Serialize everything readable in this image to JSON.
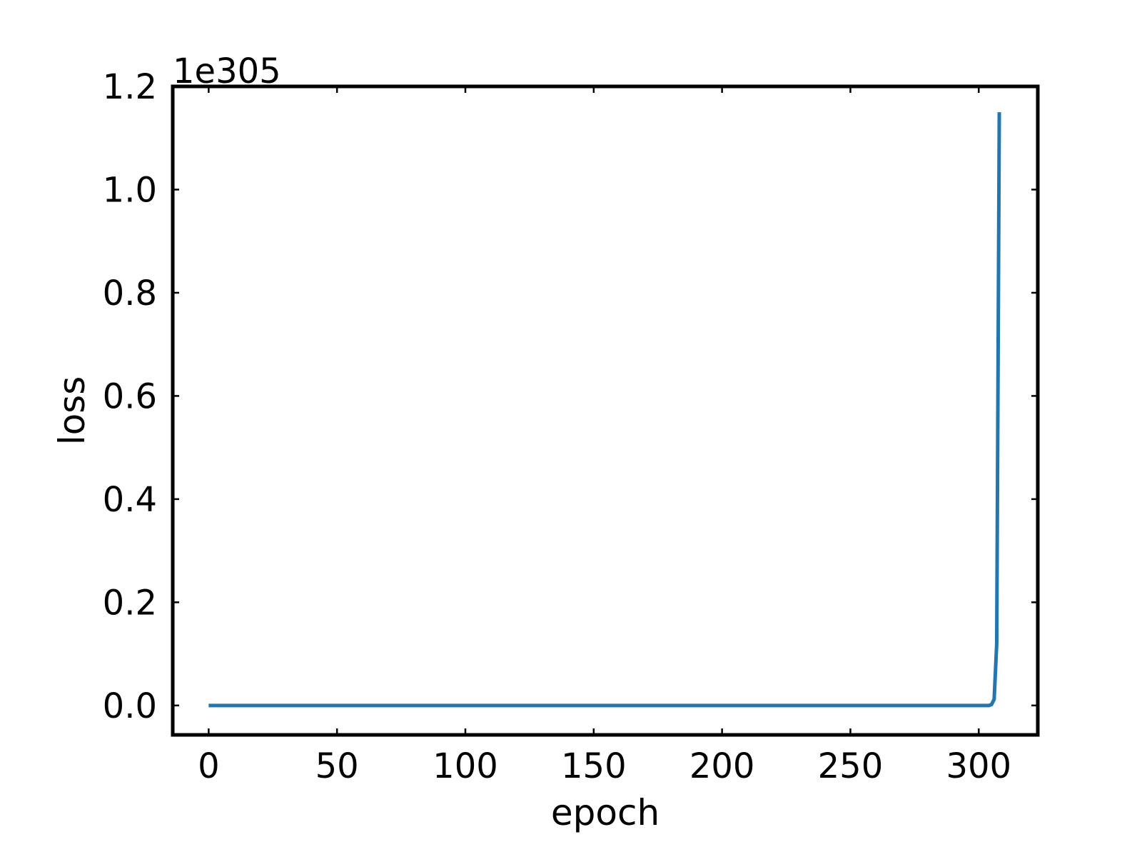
{
  "chart_data": {
    "type": "line",
    "title": "",
    "xlabel": "epoch",
    "ylabel": "loss",
    "y_offset_label": "1e305",
    "xlim": [
      -14,
      323
    ],
    "ylim": [
      -0.057,
      1.2
    ],
    "xticks": [
      0,
      50,
      100,
      150,
      200,
      250,
      300
    ],
    "xtick_labels": [
      "0",
      "50",
      "100",
      "150",
      "200",
      "250",
      "300"
    ],
    "yticks": [
      0.0,
      0.2,
      0.4,
      0.6,
      0.8,
      1.0,
      1.2
    ],
    "ytick_labels": [
      "0.0",
      "0.2",
      "0.4",
      "0.6",
      "0.8",
      "1.0",
      "1.2"
    ],
    "grid": false,
    "series": [
      {
        "color": "#1f77b4",
        "x": [
          0,
          50,
          100,
          150,
          200,
          250,
          300,
          304,
          305,
          306,
          307,
          308
        ],
        "y": [
          0,
          0,
          0,
          0,
          0,
          0,
          0,
          0,
          0.002,
          0.012,
          0.12,
          1.15
        ]
      }
    ]
  }
}
